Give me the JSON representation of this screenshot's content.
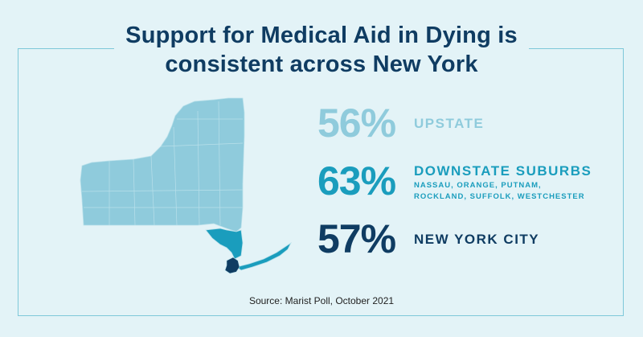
{
  "title": {
    "line1": "Support for Medical Aid in Dying is",
    "line2": "consistent across New York"
  },
  "colors": {
    "upstate": "#8fcbdc",
    "suburbs": "#1a9dbd",
    "nyc": "#0f3c62"
  },
  "regions": [
    {
      "pct": "56%",
      "label": "UPSTATE",
      "sub": []
    },
    {
      "pct": "63%",
      "label": "DOWNSTATE SUBURBS",
      "sub": [
        "NASSAU, ORANGE, PUTNAM,",
        "ROCKLAND, SUFFOLK, WESTCHESTER"
      ]
    },
    {
      "pct": "57%",
      "label": "NEW YORK CITY",
      "sub": []
    }
  ],
  "source": "Source: Marist Poll, October 2021"
}
